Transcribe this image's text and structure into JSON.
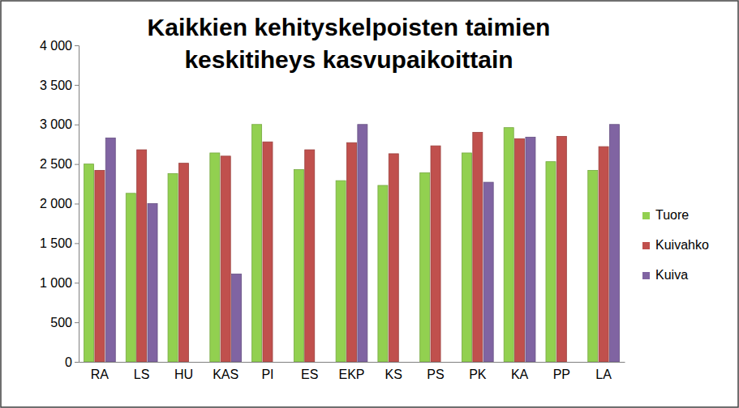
{
  "chart_data": {
    "type": "bar",
    "title": "Kaikkien kehityskelpoisten taimien keskitiheys kasvupaikoittain",
    "categories": [
      "RA",
      "LS",
      "HU",
      "KAS",
      "PI",
      "ES",
      "EKP",
      "KS",
      "PS",
      "PK",
      "KA",
      "PP",
      "LA"
    ],
    "series": [
      {
        "name": "Tuore",
        "color": "#92d050",
        "values": [
          2500,
          2130,
          2380,
          2640,
          3000,
          2430,
          2290,
          2230,
          2390,
          2640,
          2960,
          2530,
          2420
        ]
      },
      {
        "name": "Kuivahko",
        "color": "#c0504d",
        "values": [
          2420,
          2680,
          2510,
          2600,
          2780,
          2680,
          2770,
          2630,
          2730,
          2900,
          2820,
          2850,
          2720
        ]
      },
      {
        "name": "Kuiva",
        "color": "#8064a2",
        "values": [
          2830,
          2000,
          0,
          1110,
          0,
          0,
          3000,
          0,
          0,
          2270,
          2840,
          0,
          3000
        ]
      }
    ],
    "ylim": [
      0,
      4000
    ],
    "yticks": [
      0,
      500,
      {
        "value": 1000,
        "label": "1 000"
      },
      {
        "value": 1500,
        "label": "1 500"
      },
      {
        "value": 2000,
        "label": "2 000"
      },
      {
        "value": 2500,
        "label": "2 500"
      },
      {
        "value": 3000,
        "label": "3 000"
      },
      {
        "value": 3500,
        "label": "3 500"
      },
      {
        "value": 4000,
        "label": "4 000"
      }
    ],
    "grid": false,
    "legend": "right"
  }
}
